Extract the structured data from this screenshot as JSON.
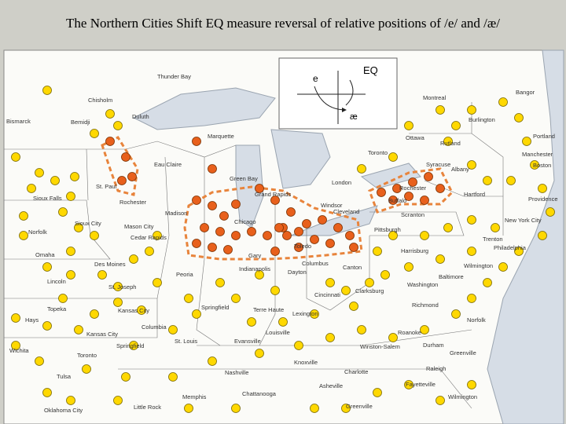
{
  "title": "The Northern Cities Shift EQ measure reversal of relative positions of /e/ and /æ/",
  "legend": {
    "label": "EQ",
    "vowel_e": "e",
    "vowel_ae": "æ"
  },
  "places": [
    "Thunder Bay",
    "Bangor",
    "Chisholm",
    "Montreal",
    "Duluth",
    "Burlington",
    "Bismarck",
    "Bemidji",
    "Marquette",
    "Ottawa",
    "Portland",
    "Rutland",
    "Toronto",
    "Manchester",
    "Eau Claire",
    "Syracuse",
    "Boston",
    "Albany",
    "St. Paul",
    "Green Bay",
    "London",
    "Rochester",
    "Hartford",
    "Sioux Falls",
    "Rochester",
    "Grand Rapids",
    "Windsor",
    "Buffalo",
    "Providence",
    "Madison",
    "Cleveland",
    "Scranton",
    "Sioux City",
    "Mason City",
    "Chicago",
    "Pittsburgh",
    "New York City",
    "Norfolk",
    "Cedar Rapids",
    "Toledo",
    "Trenton",
    "Harrisburg",
    "Philadelphia",
    "Omaha",
    "Gary",
    "Des Moines",
    "Columbus",
    "Canton",
    "Wilmington",
    "Dayton",
    "Peoria",
    "Indianapolis",
    "Lincoln",
    "Baltimore",
    "Washington",
    "St. Joseph",
    "Cincinnati",
    "Clarksburg",
    "Kansas City",
    "Topeka",
    "Springfield",
    "Terre Haute",
    "Lexington",
    "Richmond",
    "Hays",
    "Columbia",
    "Norfolk",
    "Kansas City",
    "Louisville",
    "Roanoke",
    "St. Louis",
    "Springfield",
    "Evansville",
    "Winston-Salem",
    "Durham",
    "Wichita",
    "Toronto",
    "Knoxville",
    "Greenville",
    "Raleigh",
    "Nashville",
    "Charlotte",
    "Tulsa",
    "Asheville",
    "Fayetteville",
    "Memphis",
    "Chattanooga",
    "Wilmington",
    "Oklahoma City",
    "Little Rock",
    "Greenville"
  ]
}
